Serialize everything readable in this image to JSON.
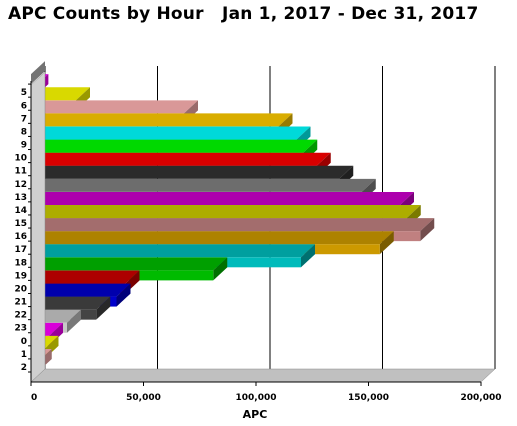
{
  "chart_data": {
    "type": "bar",
    "orientation": "horizontal",
    "title": "APC Counts by Hour   Jan 1, 2017 - Dec 31, 2017",
    "xlabel": "APC",
    "ylabel": "",
    "xlim": [
      0,
      200000
    ],
    "x_ticks": [
      "0",
      "50,000",
      "100,000",
      "150,000",
      "200,000"
    ],
    "grid": "vertical",
    "categories": [
      "",
      "5",
      "6",
      "7",
      "8",
      "9",
      "10",
      "11",
      "12",
      "13",
      "14",
      "15",
      "16",
      "17",
      "18",
      "19",
      "20",
      "21",
      "22",
      "23",
      "0",
      "1",
      "2"
    ],
    "values": [
      0,
      1500,
      20000,
      68000,
      110000,
      118000,
      121000,
      127000,
      137000,
      147000,
      164000,
      167000,
      173000,
      155000,
      120000,
      81000,
      42000,
      38000,
      29000,
      16000,
      8000,
      6000,
      3000
    ],
    "colors": [
      "#c0c0c0",
      "#ff00ff",
      "#ffff00",
      "#ffb3b3",
      "#ffcc00",
      "#00ffff",
      "#00ff00",
      "#ff0000",
      "#333333",
      "#808080",
      "#cc00cc",
      "#cccc00",
      "#c08080",
      "#cc9900",
      "#00bbbb",
      "#00bb00",
      "#cc0000",
      "#0000cc",
      "#444444",
      "#c8c8c8",
      "#ff00ff",
      "#ffff00",
      "#ffb3b3"
    ]
  }
}
